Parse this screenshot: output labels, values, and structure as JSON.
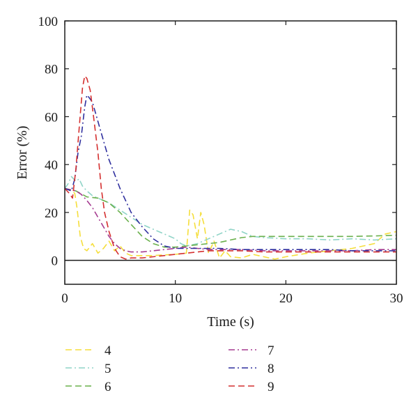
{
  "chart_data": {
    "type": "line",
    "xlabel": "Time (s)",
    "ylabel": "Error (%)",
    "xlim": [
      0,
      30
    ],
    "ylim": [
      -10,
      100
    ],
    "x_ticks": [
      "0",
      "10",
      "20",
      "30"
    ],
    "y_ticks": [
      "0",
      "20",
      "40",
      "60",
      "80",
      "100"
    ],
    "zero_line": true,
    "grid": false,
    "legend_placement": "below",
    "series": [
      {
        "name": "4",
        "color": "#f5de3b",
        "dash": "dashed",
        "x": [
          0,
          0.5,
          0.9,
          1.1,
          1.4,
          1.7,
          2.0,
          2.5,
          3.0,
          3.5,
          4.0,
          4.5,
          5.0,
          5.5,
          6,
          8,
          10,
          11.0,
          11.3,
          11.6,
          12.0,
          12.3,
          12.6,
          13.0,
          13.5,
          14.0,
          14.5,
          15,
          16,
          17,
          18,
          19,
          20,
          22,
          24,
          26,
          28,
          29,
          30
        ],
        "y": [
          30,
          29.5,
          28,
          22,
          10,
          5,
          4,
          7,
          3,
          5,
          8,
          4,
          6,
          3,
          2,
          2,
          2.5,
          3,
          21,
          19,
          9,
          20,
          15,
          3,
          8,
          1,
          4,
          1.5,
          1,
          2.5,
          1.5,
          0.5,
          1.5,
          3,
          4,
          5,
          7,
          11,
          12
        ]
      },
      {
        "name": "5",
        "color": "#8fd4c7",
        "dash": "dash-dot",
        "x": [
          0,
          0.3,
          0.6,
          1.0,
          1.3,
          1.6,
          2.0,
          2.5,
          3,
          4,
          5,
          6,
          7,
          8,
          9,
          10,
          10.5,
          11,
          12,
          13,
          14,
          15,
          16,
          17,
          18,
          20,
          22,
          24,
          26,
          28,
          30
        ],
        "y": [
          30,
          32,
          35,
          33,
          34,
          31,
          29,
          27,
          26,
          24,
          21,
          18,
          15,
          13,
          11,
          9,
          7,
          6,
          7,
          9,
          11,
          13,
          12,
          10,
          9.5,
          9,
          9,
          8.5,
          9,
          8.5,
          9
        ]
      },
      {
        "name": "6",
        "color": "#6ab04c",
        "dash": "dashed",
        "x": [
          0,
          1,
          2,
          3,
          4,
          5,
          6,
          7,
          8,
          9,
          10,
          11,
          12,
          13,
          14,
          15,
          16,
          17,
          18,
          20,
          22,
          24,
          26,
          28,
          30
        ],
        "y": [
          30,
          29,
          26.5,
          26,
          24,
          20,
          15,
          10,
          7,
          5.5,
          5.5,
          6,
          6.5,
          7,
          7.5,
          8.5,
          9.5,
          10,
          10,
          10,
          10,
          10,
          10,
          10.2,
          10.5
        ]
      },
      {
        "name": "7",
        "color": "#a53a8f",
        "dash": "dash-dot",
        "x": [
          0,
          1,
          1.5,
          2,
          2.5,
          3,
          3.5,
          4,
          4.5,
          5,
          5.5,
          6,
          7,
          8,
          9,
          10,
          11,
          12,
          13,
          14,
          16,
          18,
          20,
          22,
          24,
          26,
          28,
          30
        ],
        "y": [
          30,
          29,
          27.5,
          25,
          22,
          18,
          14,
          10,
          7,
          5,
          4,
          3.5,
          3.5,
          4,
          4.5,
          5,
          5.5,
          5,
          4.5,
          4.5,
          4.5,
          4,
          4,
          4,
          4,
          4,
          4.5,
          4.5
        ]
      },
      {
        "name": "8",
        "color": "#2e2e9e",
        "dash": "dash-dot",
        "x": [
          0,
          0.6,
          0.9,
          1.2,
          1.5,
          1.8,
          2.0,
          2.2,
          2.5,
          3.0,
          3.5,
          4.0,
          5,
          6,
          7,
          8,
          9,
          10,
          11,
          12,
          13,
          14,
          16,
          18,
          20,
          22,
          24,
          26,
          28,
          30
        ],
        "y": [
          30,
          29,
          34,
          45,
          52,
          64,
          69,
          68,
          66,
          58,
          50,
          42,
          30,
          20,
          14,
          9,
          6,
          5,
          5,
          5,
          5,
          5,
          4.5,
          4.5,
          4.5,
          4.5,
          4.5,
          4,
          4,
          4
        ]
      },
      {
        "name": "9",
        "color": "#d42f2f",
        "dash": "dashed",
        "x": [
          0,
          0.4,
          0.7,
          1.0,
          1.3,
          1.6,
          1.8,
          2.0,
          2.3,
          2.6,
          3.0,
          3.3,
          3.6,
          4.0,
          4.5,
          5.0,
          5.5,
          6,
          7,
          8,
          9,
          10,
          11,
          12,
          13,
          14,
          16,
          18,
          20,
          22,
          24,
          26,
          28,
          30
        ],
        "y": [
          30,
          28,
          26,
          38,
          55,
          72,
          77,
          76,
          71,
          60,
          45,
          30,
          20,
          12,
          5,
          1.5,
          0.5,
          1,
          1,
          1.5,
          2,
          2.5,
          3,
          3.5,
          4,
          4,
          4,
          3.5,
          3.5,
          3.5,
          3.5,
          3.5,
          3.5,
          3.5
        ]
      }
    ]
  }
}
